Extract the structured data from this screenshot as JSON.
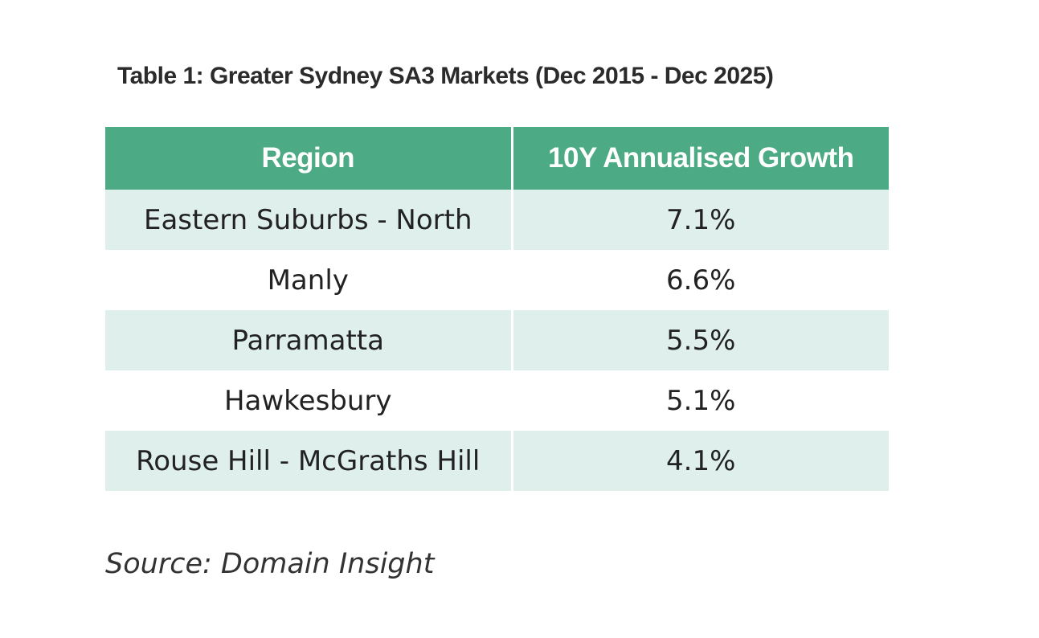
{
  "title": "Table 1: Greater Sydney SA3 Markets (Dec 2015 - Dec 2025)",
  "table": {
    "headers": [
      "Region",
      "10Y Annualised Growth"
    ],
    "rows": [
      {
        "region": "Eastern Suburbs - North",
        "growth": "7.1%"
      },
      {
        "region": "Manly",
        "growth": "6.6%"
      },
      {
        "region": "Parramatta",
        "growth": "5.5%"
      },
      {
        "region": "Hawkesbury",
        "growth": "5.1%"
      },
      {
        "region": "Rouse Hill - McGraths Hill",
        "growth": "4.1%"
      }
    ]
  },
  "source": "Source: Domain Insight",
  "colors": {
    "header_background": "#4caa84",
    "shaded_row_background": "#dff0ec"
  }
}
